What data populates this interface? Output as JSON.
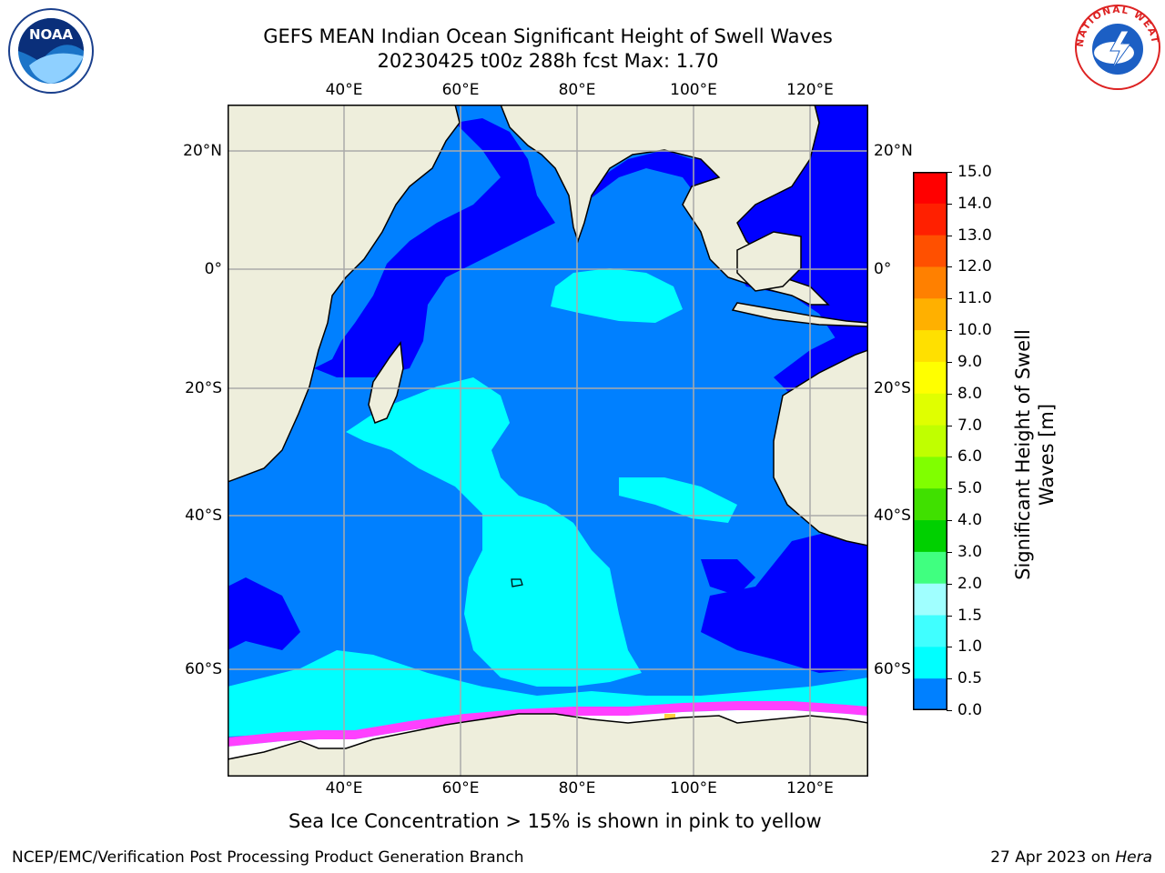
{
  "header": {
    "title_line1": "GEFS MEAN Indian Ocean Significant Height of Swell Waves",
    "title_line2": "20230425 t00z 288h fcst   Max: 1.70"
  },
  "logos": {
    "left": {
      "icon": "noaa-logo",
      "text": "NOAA"
    },
    "right": {
      "icon": "national-weather-service-logo",
      "text": "NATIONAL WEATHER SERVICE"
    }
  },
  "map": {
    "lon_labels": [
      "40°E",
      "60°E",
      "80°E",
      "100°E",
      "120°E"
    ],
    "lat_labels": [
      "20°N",
      "0°",
      "20°S",
      "40°S",
      "60°S"
    ],
    "extent": {
      "lon_min": 20,
      "lon_max": 130,
      "lat_min": -72,
      "lat_max": 28
    },
    "colors": {
      "land": "#eeeedc",
      "ocean_0_0_5": "#0000ff",
      "ocean_0_5_1": "#0080ff",
      "ocean_1_1_5": "#00ffff",
      "sea_ice_pink": "#ff40ff",
      "sea_ice_yellow": "#ffd040",
      "grid": "#aaaaaa"
    }
  },
  "colorbar": {
    "title": "Significant Height of Swell Waves [m]",
    "ticks": [
      "15.0",
      "14.0",
      "13.0",
      "12.0",
      "11.0",
      "10.0",
      "9.0",
      "8.0",
      "7.0",
      "6.0",
      "5.0",
      "4.0",
      "3.0",
      "2.0",
      "1.5",
      "1.0",
      "0.5",
      "0.0"
    ],
    "colors": [
      "#ff0000",
      "#ff2000",
      "#ff5000",
      "#ff8000",
      "#ffb000",
      "#ffe000",
      "#ffff00",
      "#e0ff00",
      "#c0ff00",
      "#80ff00",
      "#40e000",
      "#00d000",
      "#40ff80",
      "#a0ffff",
      "#40ffff",
      "#00ffff",
      "#0080ff",
      "#0000ff"
    ]
  },
  "captions": {
    "sea_ice": "Sea Ice Concentration > 15% is shown in pink to yellow",
    "footer_left": "NCEP/EMC/Verification Post Processing Product Generation Branch",
    "footer_right_prefix": "27 Apr 2023 on ",
    "footer_right_host": "Hera"
  }
}
